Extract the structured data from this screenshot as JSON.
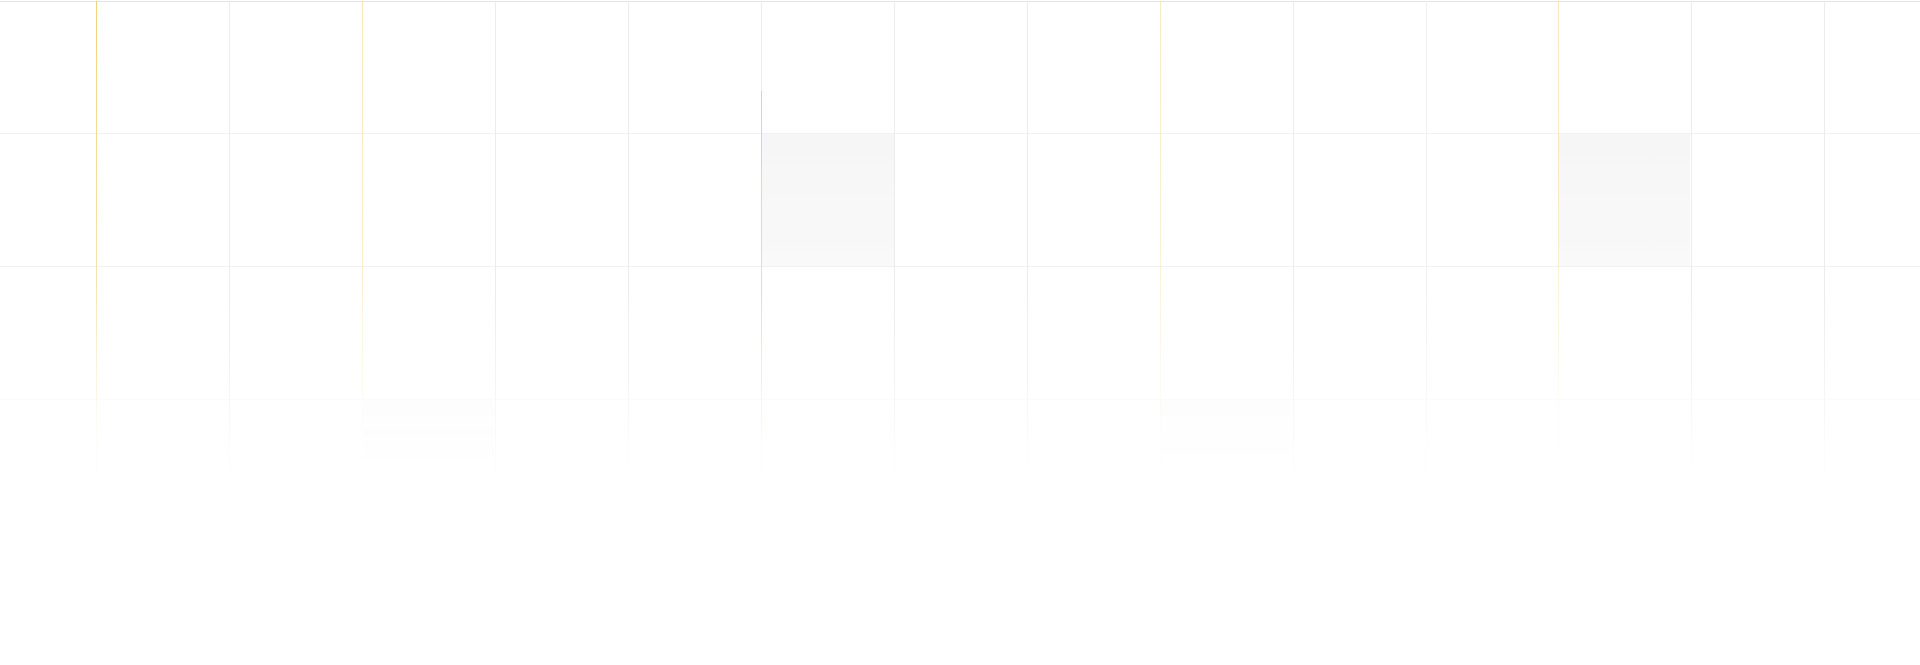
{
  "grid": {
    "columns": 15,
    "rows": 4,
    "highlighted_cells": [
      {
        "row": 2,
        "col": 6
      },
      {
        "row": 2,
        "col": 12
      },
      {
        "row": 3,
        "col": 3
      },
      {
        "row": 3,
        "col": 9
      }
    ],
    "accent_columns": [
      1,
      3,
      6,
      9,
      12
    ]
  },
  "colors": {
    "background": "#ffffff",
    "gridline": "#ececec",
    "accent_line": "#f3d27a",
    "cell_highlight": "#f6f6f6"
  }
}
